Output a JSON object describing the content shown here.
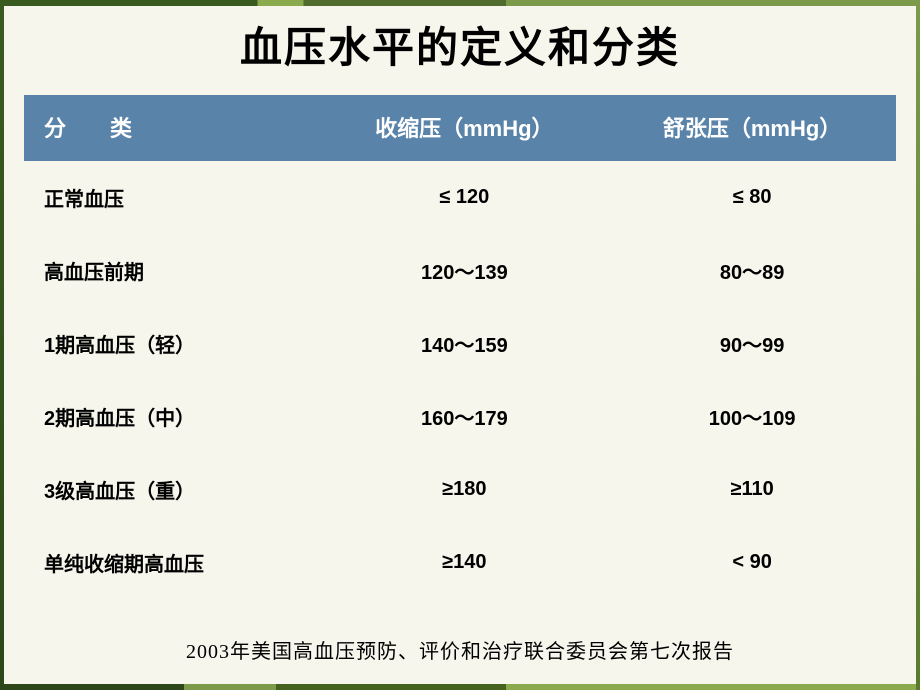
{
  "slide": {
    "title": "血压水平的定义和分类",
    "table": {
      "columns": [
        "分　　类",
        "收缩压（mmHg）",
        "舒张压（mmHg）"
      ],
      "rows": [
        [
          "正常血压",
          "≤ 120",
          "≤ 80"
        ],
        [
          "高血压前期",
          "120～139",
          "80～89"
        ],
        [
          "1期高血压（轻）",
          "140～159",
          "90～99"
        ],
        [
          "2期高血压（中）",
          "160～179",
          "100～109"
        ],
        [
          "3级高血压（重）",
          "≥180",
          "≥110"
        ],
        [
          "单纯收缩期高血压",
          "≥140",
          "< 90"
        ]
      ],
      "header_bg": "#5a83aa",
      "header_fg": "#ffffff",
      "header_fontsize": 22,
      "cell_fontsize": 20,
      "column_widths_pct": [
        34,
        33,
        33
      ],
      "column_align": [
        "left",
        "center",
        "center"
      ]
    },
    "footer": "2003年美国高血压预防、评价和治疗联合委员会第七次报告",
    "background_color": "#f6f6ec",
    "title_fontsize": 42,
    "title_color": "#000000",
    "footer_fontsize": 20
  }
}
